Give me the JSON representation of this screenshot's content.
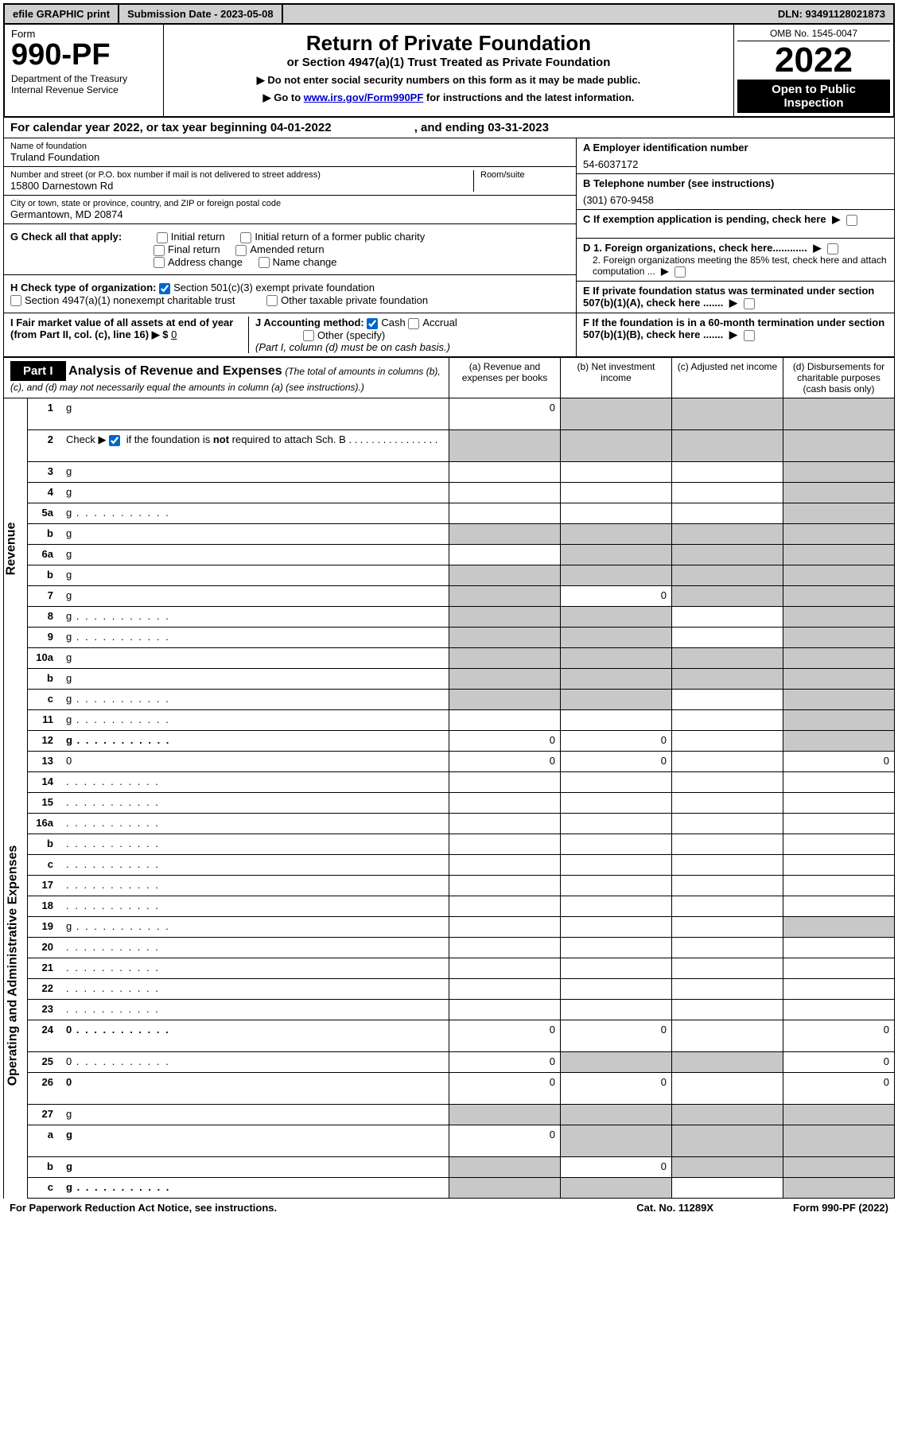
{
  "top_bar": {
    "efile": "efile GRAPHIC print",
    "submission_label": "Submission Date - 2023-05-08",
    "dln": "DLN: 93491128021873"
  },
  "header": {
    "form_word": "Form",
    "form_number": "990-PF",
    "dept": "Department of the Treasury",
    "irs": "Internal Revenue Service",
    "title": "Return of Private Foundation",
    "subtitle": "or Section 4947(a)(1) Trust Treated as Private Foundation",
    "instr1": "▶ Do not enter social security numbers on this form as it may be made public.",
    "instr2_prefix": "▶ Go to ",
    "instr2_link": "www.irs.gov/Form990PF",
    "instr2_suffix": " for instructions and the latest information.",
    "omb": "OMB No. 1545-0047",
    "year": "2022",
    "inspection": "Open to Public Inspection"
  },
  "cal_year": {
    "prefix": "For calendar year 2022, or tax year beginning ",
    "begin": "04-01-2022",
    "mid": " , and ending ",
    "end": "03-31-2023"
  },
  "foundation": {
    "name_label": "Name of foundation",
    "name": "Truland Foundation",
    "addr_label": "Number and street (or P.O. box number if mail is not delivered to street address)",
    "addr": "15800 Darnestown Rd",
    "room_label": "Room/suite",
    "city_label": "City or town, state or province, country, and ZIP or foreign postal code",
    "city": "Germantown, MD  20874",
    "ein_label": "A Employer identification number",
    "ein": "54-6037172",
    "phone_label": "B Telephone number (see instructions)",
    "phone": "(301) 670-9458",
    "c_label": "C If exemption application is pending, check here",
    "d1_label": "D 1. Foreign organizations, check here............",
    "d2_label": "2. Foreign organizations meeting the 85% test, check here and attach computation ...",
    "e_label": "E  If private foundation status was terminated under section 507(b)(1)(A), check here .......",
    "f_label": "F  If the foundation is in a 60-month termination under section 507(b)(1)(B), check here .......",
    "g_label": "G Check all that apply:",
    "g_opts": [
      "Initial return",
      "Initial return of a former public charity",
      "Final return",
      "Amended return",
      "Address change",
      "Name change"
    ],
    "h_label": "H Check type of organization:",
    "h_opt1": "Section 501(c)(3) exempt private foundation",
    "h_opt2": "Section 4947(a)(1) nonexempt charitable trust",
    "h_opt3": "Other taxable private foundation",
    "i_label": "I Fair market value of all assets at end of year (from Part II, col. (c), line 16) ▶ $",
    "i_value": "0",
    "j_label": "J Accounting method:",
    "j_cash": "Cash",
    "j_accrual": "Accrual",
    "j_other": "Other (specify)",
    "j_note": "(Part I, column (d) must be on cash basis.)"
  },
  "part1": {
    "label": "Part I",
    "title": "Analysis of Revenue and Expenses",
    "note": "(The total of amounts in columns (b), (c), and (d) may not necessarily equal the amounts in column (a) (see instructions).)",
    "cols": {
      "a": "(a)   Revenue and expenses per books",
      "b": "(b)   Net investment income",
      "c": "(c)   Adjusted net income",
      "d": "(d)   Disbursements for charitable purposes (cash basis only)"
    }
  },
  "side": {
    "revenue": "Revenue",
    "opex": "Operating and Administrative Expenses"
  },
  "lines": [
    {
      "n": "1",
      "d": "g",
      "a": "0",
      "b": "g",
      "c": "g",
      "tall": true
    },
    {
      "n": "2",
      "d": "g",
      "a": "g",
      "b": "g",
      "c": "g",
      "tall": true,
      "bold_not": true
    },
    {
      "n": "3",
      "d": "g",
      "a": "",
      "b": "",
      "c": ""
    },
    {
      "n": "4",
      "d": "g",
      "a": "",
      "b": "",
      "c": ""
    },
    {
      "n": "5a",
      "d": "g",
      "a": "",
      "b": "",
      "c": "",
      "dots": true
    },
    {
      "n": "b",
      "d": "g",
      "a": "g",
      "b": "g",
      "c": "g",
      "underline": true
    },
    {
      "n": "6a",
      "d": "g",
      "a": "",
      "b": "g",
      "c": "g"
    },
    {
      "n": "b",
      "d": "g",
      "a": "g",
      "b": "g",
      "c": "g",
      "underline": true
    },
    {
      "n": "7",
      "d": "g",
      "a": "g",
      "b": "0",
      "c": "g"
    },
    {
      "n": "8",
      "d": "g",
      "a": "g",
      "b": "g",
      "c": "",
      "dots": true
    },
    {
      "n": "9",
      "d": "g",
      "a": "g",
      "b": "g",
      "c": "",
      "dots": true
    },
    {
      "n": "10a",
      "d": "g",
      "a": "g",
      "b": "g",
      "c": "g",
      "underline": true
    },
    {
      "n": "b",
      "d": "g",
      "a": "g",
      "b": "g",
      "c": "g",
      "underline": true
    },
    {
      "n": "c",
      "d": "g",
      "a": "g",
      "b": "g",
      "c": "",
      "dots": true
    },
    {
      "n": "11",
      "d": "g",
      "a": "",
      "b": "",
      "c": "",
      "dots": true
    },
    {
      "n": "12",
      "d": "g",
      "a": "0",
      "b": "0",
      "c": "",
      "bold": true,
      "dots": true
    }
  ],
  "oplines": [
    {
      "n": "13",
      "d": "0",
      "a": "0",
      "b": "0",
      "c": ""
    },
    {
      "n": "14",
      "d": "",
      "a": "",
      "b": "",
      "c": "",
      "dots": true
    },
    {
      "n": "15",
      "d": "",
      "a": "",
      "b": "",
      "c": "",
      "dots": true
    },
    {
      "n": "16a",
      "d": "",
      "a": "",
      "b": "",
      "c": "",
      "dots": true
    },
    {
      "n": "b",
      "d": "",
      "a": "",
      "b": "",
      "c": "",
      "dots": true
    },
    {
      "n": "c",
      "d": "",
      "a": "",
      "b": "",
      "c": "",
      "dots": true
    },
    {
      "n": "17",
      "d": "",
      "a": "",
      "b": "",
      "c": "",
      "dots": true
    },
    {
      "n": "18",
      "d": "",
      "a": "",
      "b": "",
      "c": "",
      "dots": true
    },
    {
      "n": "19",
      "d": "g",
      "a": "",
      "b": "",
      "c": "",
      "dots": true
    },
    {
      "n": "20",
      "d": "",
      "a": "",
      "b": "",
      "c": "",
      "dots": true
    },
    {
      "n": "21",
      "d": "",
      "a": "",
      "b": "",
      "c": "",
      "dots": true
    },
    {
      "n": "22",
      "d": "",
      "a": "",
      "b": "",
      "c": "",
      "dots": true
    },
    {
      "n": "23",
      "d": "",
      "a": "",
      "b": "",
      "c": "",
      "dots": true
    },
    {
      "n": "24",
      "d": "0",
      "a": "0",
      "b": "0",
      "c": "",
      "bold": true,
      "tall": true,
      "dots": true
    },
    {
      "n": "25",
      "d": "0",
      "a": "0",
      "b": "g",
      "c": "g",
      "dots": true
    },
    {
      "n": "26",
      "d": "0",
      "a": "0",
      "b": "0",
      "c": "",
      "bold": true,
      "tall": true
    },
    {
      "n": "27",
      "d": "g",
      "a": "g",
      "b": "g",
      "c": "g"
    },
    {
      "n": "a",
      "d": "g",
      "a": "0",
      "b": "g",
      "c": "g",
      "bold": true,
      "tall": true
    },
    {
      "n": "b",
      "d": "g",
      "a": "g",
      "b": "0",
      "c": "g",
      "bold": true
    },
    {
      "n": "c",
      "d": "g",
      "a": "g",
      "b": "g",
      "c": "",
      "bold": true,
      "dots": true
    }
  ],
  "footer": {
    "left": "For Paperwork Reduction Act Notice, see instructions.",
    "center": "Cat. No. 11289X",
    "right": "Form 990-PF (2022)"
  }
}
